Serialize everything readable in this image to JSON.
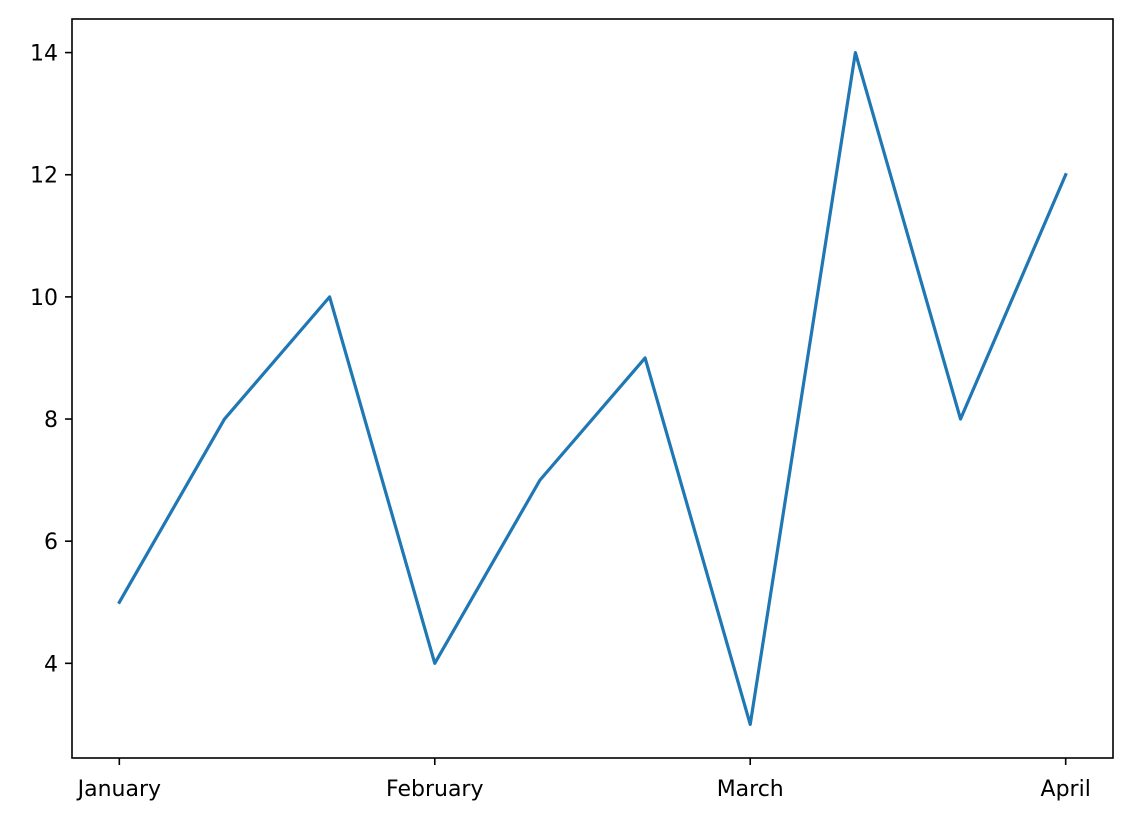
{
  "chart_data": {
    "type": "line",
    "title": "",
    "xlabel": "",
    "ylabel": "",
    "x": [
      0,
      1,
      2,
      3,
      4,
      5,
      6,
      7,
      8,
      9
    ],
    "series": [
      {
        "values": [
          5,
          8,
          10,
          4,
          7,
          9,
          3,
          14,
          8,
          12
        ],
        "color": "#1f77b4"
      }
    ],
    "xticks": [
      {
        "x": 0,
        "label": "January"
      },
      {
        "x": 3,
        "label": "February"
      },
      {
        "x": 6,
        "label": "March"
      },
      {
        "x": 9,
        "label": "April"
      }
    ],
    "yticks": [
      4,
      6,
      8,
      10,
      12,
      14
    ],
    "xlim": [
      -0.45,
      9.45
    ],
    "ylim": [
      2.45,
      14.55
    ],
    "grid": false,
    "legend": "none"
  }
}
